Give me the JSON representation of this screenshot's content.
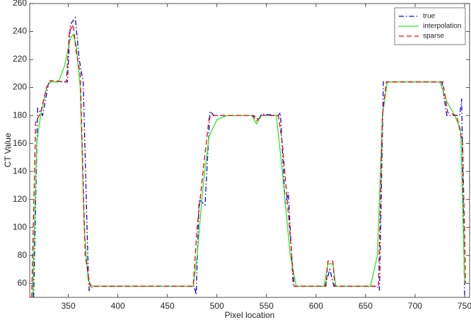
{
  "chart_data": {
    "type": "line",
    "xlabel": "Pixel location",
    "ylabel": "CT Value",
    "xlim": [
      311,
      755
    ],
    "xticks": [
      350,
      400,
      450,
      500,
      550,
      600,
      650,
      700,
      750
    ],
    "ylim": [
      50,
      260
    ],
    "yticks": [
      60,
      80,
      100,
      120,
      140,
      160,
      180,
      200,
      220,
      240,
      260
    ],
    "grid": false,
    "legend": "upper right",
    "series": [
      {
        "name": "true",
        "color": "#0000ff",
        "dash": "dashdot",
        "x": [
          315,
          319,
          324,
          330,
          332,
          349,
          352,
          357,
          361,
          365,
          370,
          371,
          375,
          477,
          479,
          482,
          488,
          493,
          497,
          537,
          542,
          545,
          562,
          564,
          569,
          572,
          577,
          609,
          614,
          618,
          662,
          664,
          668,
          727,
          732,
          745,
          747,
          750
        ],
        "values": [
          50,
          185,
          180,
          203,
          204,
          204,
          245,
          250,
          220,
          204,
          70,
          55,
          58,
          58,
          52,
          120,
          116,
          183,
          180,
          180,
          177,
          181,
          180,
          182,
          116,
          125,
          58,
          58,
          70,
          58,
          58,
          55,
          204,
          204,
          180,
          180,
          192,
          50
        ]
      },
      {
        "name": "interpolation",
        "color": "#22ee22",
        "dash": "solid",
        "x": [
          314,
          318,
          322,
          328,
          332,
          340,
          346,
          352,
          355,
          358,
          362,
          366,
          370,
          374,
          476,
          480,
          486,
          492,
          500,
          510,
          535,
          540,
          545,
          560,
          566,
          574,
          580,
          608,
          612,
          617,
          620,
          655,
          662,
          667,
          672,
          725,
          732,
          740,
          746,
          750
        ],
        "values": [
          50,
          160,
          180,
          200,
          204,
          204,
          215,
          235,
          238,
          230,
          200,
          100,
          62,
          58,
          58,
          80,
          130,
          165,
          177,
          180,
          180,
          174,
          180,
          180,
          140,
          80,
          58,
          58,
          74,
          74,
          58,
          58,
          80,
          180,
          204,
          204,
          190,
          180,
          170,
          60
        ]
      },
      {
        "name": "sparse",
        "color": "#ff0000",
        "dash": "dashed",
        "x": [
          313,
          317,
          322,
          328,
          332,
          348,
          351,
          355,
          358,
          362,
          367,
          372,
          476,
          480,
          486,
          492,
          496,
          536,
          540,
          545,
          562,
          566,
          572,
          578,
          610,
          612,
          617,
          619,
          663,
          667,
          671,
          728,
          733,
          742,
          748,
          751
        ],
        "values": [
          50,
          175,
          182,
          200,
          205,
          204,
          240,
          245,
          225,
          210,
          80,
          58,
          58,
          100,
          140,
          178,
          180,
          180,
          176,
          180,
          180,
          160,
          110,
          58,
          58,
          76,
          76,
          58,
          58,
          180,
          204,
          204,
          182,
          180,
          160,
          60
        ]
      }
    ]
  }
}
